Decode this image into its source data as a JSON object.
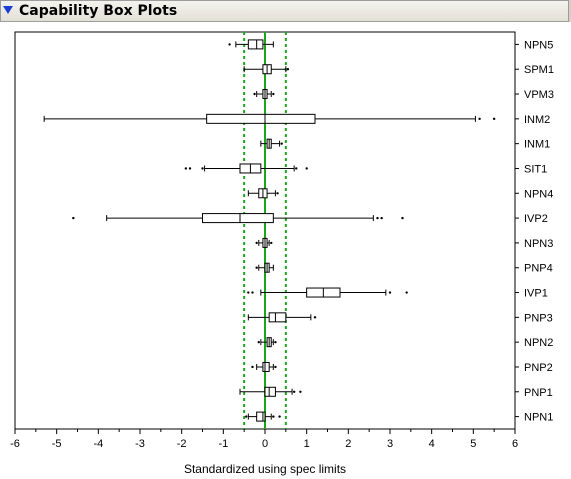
{
  "panel": {
    "title": "Capability Box Plots"
  },
  "chart_data": {
    "type": "box",
    "xlabel": "Standardized using spec limits",
    "xlim": [
      -6,
      6
    ],
    "xticks": [
      -6,
      -5,
      -4,
      -3,
      -2,
      -1,
      0,
      1,
      2,
      3,
      4,
      5,
      6
    ],
    "reference_lines": {
      "solid_green": [
        0
      ],
      "dotted_green": [
        -0.5,
        0.5
      ],
      "color": "#1aa51a"
    },
    "series": [
      {
        "name": "NPN5",
        "whisker_low": -0.7,
        "q1": -0.4,
        "median": -0.2,
        "q3": -0.05,
        "whisker_high": 0.2,
        "outliers": [
          -0.85
        ]
      },
      {
        "name": "SPM1",
        "whisker_low": -0.5,
        "q1": -0.05,
        "median": 0.05,
        "q3": 0.15,
        "whisker_high": 0.5,
        "outliers": [
          0.55
        ]
      },
      {
        "name": "VPM3",
        "whisker_low": -0.2,
        "q1": -0.05,
        "median": 0.0,
        "q3": 0.05,
        "whisker_high": 0.15,
        "outliers": [
          -0.25,
          0.2
        ]
      },
      {
        "name": "INM2",
        "whisker_low": -5.3,
        "q1": -1.4,
        "median": 0.0,
        "q3": 1.2,
        "whisker_high": 5.05,
        "outliers": [
          5.15,
          5.5
        ]
      },
      {
        "name": "INM1",
        "whisker_low": -0.1,
        "q1": 0.05,
        "median": 0.1,
        "q3": 0.15,
        "whisker_high": 0.35,
        "outliers": [
          0.4
        ]
      },
      {
        "name": "SIT1",
        "whisker_low": -1.45,
        "q1": -0.6,
        "median": -0.35,
        "q3": -0.1,
        "whisker_high": 0.7,
        "outliers": [
          -1.9,
          -1.8,
          -1.5,
          0.75,
          1.0
        ]
      },
      {
        "name": "NPN4",
        "whisker_low": -0.4,
        "q1": -0.15,
        "median": -0.05,
        "q3": 0.05,
        "whisker_high": 0.25,
        "outliers": [
          0.3
        ]
      },
      {
        "name": "IVP2",
        "whisker_low": -3.8,
        "q1": -1.5,
        "median": -0.6,
        "q3": 0.2,
        "whisker_high": 2.6,
        "outliers": [
          -4.6,
          2.7,
          2.8,
          3.3
        ]
      },
      {
        "name": "NPN3",
        "whisker_low": -0.15,
        "q1": -0.05,
        "median": 0.0,
        "q3": 0.05,
        "whisker_high": 0.1,
        "outliers": [
          -0.2,
          0.15
        ]
      },
      {
        "name": "PNP4",
        "whisker_low": -0.15,
        "q1": 0.0,
        "median": 0.05,
        "q3": 0.1,
        "whisker_high": 0.2,
        "outliers": [
          -0.2
        ]
      },
      {
        "name": "IVP1",
        "whisker_low": -0.1,
        "q1": 1.0,
        "median": 1.4,
        "q3": 1.8,
        "whisker_high": 2.9,
        "outliers": [
          -0.4,
          -0.3,
          3.0,
          3.4
        ]
      },
      {
        "name": "PNP3",
        "whisker_low": -0.4,
        "q1": 0.1,
        "median": 0.25,
        "q3": 0.5,
        "whisker_high": 1.1,
        "outliers": [
          1.2
        ]
      },
      {
        "name": "NPN2",
        "whisker_low": -0.1,
        "q1": 0.05,
        "median": 0.1,
        "q3": 0.15,
        "whisker_high": 0.2,
        "outliers": [
          -0.15,
          0.25
        ]
      },
      {
        "name": "PNP2",
        "whisker_low": -0.2,
        "q1": -0.05,
        "median": 0.0,
        "q3": 0.1,
        "whisker_high": 0.2,
        "outliers": [
          -0.3,
          0.25
        ]
      },
      {
        "name": "PNP1",
        "whisker_low": -0.6,
        "q1": 0.0,
        "median": 0.1,
        "q3": 0.25,
        "whisker_high": 0.65,
        "outliers": [
          0.7,
          0.85
        ]
      },
      {
        "name": "NPN1",
        "whisker_low": -0.4,
        "q1": -0.2,
        "median": -0.05,
        "q3": 0.0,
        "whisker_high": 0.15,
        "outliers": [
          -0.45,
          0.2,
          0.35
        ]
      }
    ]
  }
}
